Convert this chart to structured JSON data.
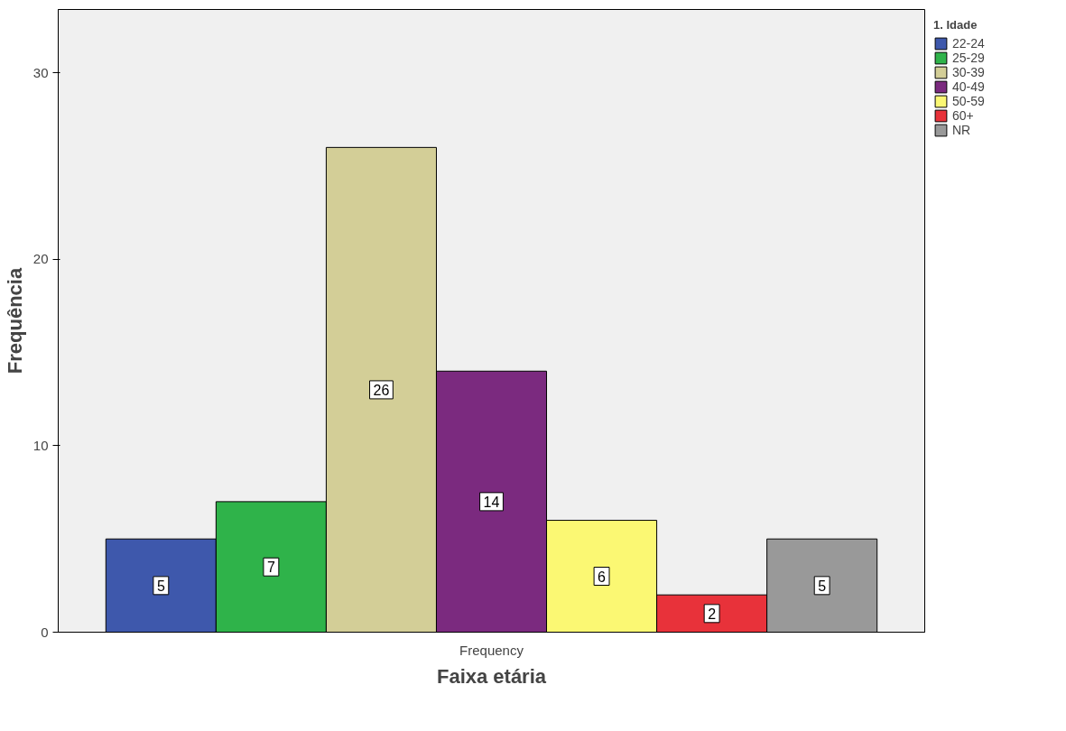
{
  "chart_data": {
    "type": "bar",
    "xlabel": "Faixa etária",
    "ylabel": "Frequência",
    "legend_title": "1. Idade",
    "categories": [
      "Frequency"
    ],
    "series": [
      {
        "name": "22-24",
        "color": "#3e58ac",
        "values": [
          5
        ]
      },
      {
        "name": "25-29",
        "color": "#2fb34a",
        "values": [
          7
        ]
      },
      {
        "name": "30-39",
        "color": "#d3ce97",
        "values": [
          26
        ]
      },
      {
        "name": "40-49",
        "color": "#7b2a7f",
        "values": [
          14
        ]
      },
      {
        "name": "50-59",
        "color": "#fbf873",
        "values": [
          6
        ]
      },
      {
        "name": "60+",
        "color": "#e8323a",
        "values": [
          2
        ]
      },
      {
        "name": "NR",
        "color": "#999999",
        "values": [
          5
        ]
      }
    ],
    "ylim": [
      0,
      33.4
    ],
    "yticks": [
      0,
      10,
      20,
      30
    ],
    "data_labels": true,
    "legend": "top right",
    "grid": false
  }
}
